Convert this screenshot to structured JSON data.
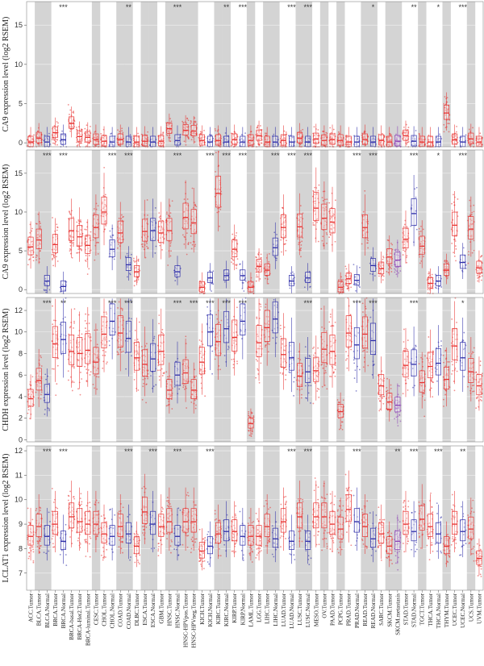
{
  "chart_data": {
    "type": "box",
    "categories": [
      "ACC.Tumor",
      "BLCA.Tumor",
      "BLCA.Normal",
      "BRCA.Tumor",
      "BRCA.Normal",
      "BRCA-basal.Tumor",
      "BRCA-Her2.Tumor",
      "BRCA-luminal.Tumor",
      "CESC.Tumor",
      "CHOL.Tumor",
      "CHOL.Normal",
      "COAD.Tumor",
      "COAD.Normal",
      "DLBC.Tumor",
      "ESCA.Tumor",
      "ESCA.Normal",
      "GBM.Tumor",
      "HNSC.Tumor",
      "HNSC.Normal",
      "HNSC-HPVpos.Tumor",
      "HNSC-HPVneg.Tumor",
      "KICH.Tumor",
      "KICH.Normal",
      "KIRC.Tumor",
      "KIRC.Normal",
      "KIRP.Tumor",
      "KIRP.Normal",
      "LAML.Tumor",
      "LGG.Tumor",
      "LIHC.Tumor",
      "LIHC.Normal",
      "LUAD.Tumor",
      "LUAD.Normal",
      "LUSC.Tumor",
      "LUSC.Normal",
      "MESO.Tumor",
      "OV.Tumor",
      "PAAD.Tumor",
      "PCPG.Tumor",
      "PRAD.Tumor",
      "PRAD.Normal",
      "READ.Tumor",
      "READ.Normal",
      "SARC.Tumor",
      "SKCM.Tumor",
      "SKCM.metastasis",
      "STAD.Tumor",
      "STAD.Normal",
      "TGCT.Tumor",
      "THCA.Tumor",
      "THCA.Normal",
      "THYM.Tumor",
      "UCEC.Tumor",
      "UCEC.Normal",
      "UCS.Tumor",
      "UVM.Tumor"
    ],
    "colors": {
      "tumor": "#e8312f",
      "normal": "#2b2ba8",
      "metastasis": "#8a3fb5",
      "shade": "#d4d4d4",
      "grid": "#ebebeb"
    },
    "panels": [
      {
        "ylabel": "CA9 expression level (log2 RSEM)",
        "ylim": [
          -0.5,
          18
        ],
        "yticks": [
          0,
          5,
          10,
          15
        ],
        "significance": [
          {
            "category": "BRCA.Normal",
            "label": "***"
          },
          {
            "category": "COAD.Normal",
            "label": "**"
          },
          {
            "category": "HNSC.Normal",
            "label": "***"
          },
          {
            "category": "KIRC.Normal",
            "label": "**"
          },
          {
            "category": "KIRP.Normal",
            "label": "***"
          },
          {
            "category": "LUAD.Normal",
            "label": "***"
          },
          {
            "category": "LUSC.Normal",
            "label": "***"
          },
          {
            "category": "READ.Normal",
            "label": "*"
          },
          {
            "category": "STAD.Normal",
            "label": "**"
          },
          {
            "category": "THCA.Normal",
            "label": "*"
          },
          {
            "category": "UCEC.Normal",
            "label": "***"
          }
        ],
        "medians": [
          0.1,
          0.6,
          0.1,
          1.3,
          0.4,
          2.5,
          0.8,
          0.7,
          0.4,
          0.2,
          0.1,
          0.4,
          0.1,
          0.1,
          0.2,
          0.1,
          0.2,
          1.8,
          0.3,
          1.6,
          1.5,
          0.3,
          0.1,
          0.3,
          0.1,
          0.4,
          0.1,
          0.3,
          0.9,
          0.1,
          0.1,
          0.3,
          0.1,
          0.6,
          0.1,
          0.5,
          0.3,
          0.4,
          0.3,
          0.1,
          0.1,
          0.4,
          0.1,
          0.3,
          0.1,
          0.2,
          0.9,
          0.2,
          0.1,
          0.1,
          0.1,
          3.8,
          0.4,
          0.1,
          0.5,
          0.1
        ]
      },
      {
        "ylabel": "CA9 expression level (log2 RSEM)",
        "ylim": [
          -0.5,
          18
        ],
        "yticks": [
          0,
          5,
          10,
          15
        ],
        "significance": [
          {
            "category": "BLCA.Normal",
            "label": "***"
          },
          {
            "category": "BRCA.Normal",
            "label": "***"
          },
          {
            "category": "CHOL.Normal",
            "label": "***"
          },
          {
            "category": "COAD.Normal",
            "label": "***"
          },
          {
            "category": "HNSC.Normal",
            "label": "***"
          },
          {
            "category": "KICH.Normal",
            "label": "***"
          },
          {
            "category": "KIRC.Normal",
            "label": "***"
          },
          {
            "category": "KIRP.Normal",
            "label": "***"
          },
          {
            "category": "LIHC.Normal",
            "label": "***"
          },
          {
            "category": "LUAD.Normal",
            "label": "***"
          },
          {
            "category": "LUSC.Normal",
            "label": "***"
          },
          {
            "category": "PRAD.Normal",
            "label": "***"
          },
          {
            "category": "READ.Normal",
            "label": "***"
          },
          {
            "category": "STAD.Normal",
            "label": "***"
          },
          {
            "category": "THCA.Normal",
            "label": "*"
          },
          {
            "category": "UCEC.Normal",
            "label": "***"
          }
        ],
        "medians": [
          5.5,
          6.4,
          1.1,
          5.8,
          0.4,
          7.6,
          6.8,
          5.7,
          8.0,
          10.0,
          5.2,
          7.3,
          3.2,
          2.3,
          7.5,
          7.6,
          7.3,
          7.6,
          2.3,
          9.3,
          8.6,
          0.3,
          1.5,
          12.4,
          1.8,
          5.2,
          1.8,
          0.3,
          3.0,
          2.5,
          5.4,
          8.0,
          1.1,
          8.1,
          1.5,
          10.5,
          9.2,
          8.7,
          0.3,
          1.4,
          1.2,
          8.0,
          3.1,
          2.7,
          4.2,
          3.8,
          6.5,
          9.8,
          5.6,
          0.8,
          1.1,
          2.5,
          8.3,
          3.5,
          7.8,
          2.8
        ]
      },
      {
        "ylabel": "CHDH expression level (log2 RSEM)",
        "ylim": [
          -0.2,
          13.2
        ],
        "yticks": [
          0,
          2,
          4,
          6,
          8,
          10,
          12
        ],
        "significance": [
          {
            "category": "BLCA.Normal",
            "label": "***"
          },
          {
            "category": "BRCA.Normal",
            "label": "**"
          },
          {
            "category": "CHOL.Normal",
            "label": "***"
          },
          {
            "category": "COAD.Normal",
            "label": "***"
          },
          {
            "category": "HNSC.Normal",
            "label": "***"
          },
          {
            "category": "HNSC-HPVneg.Tumor",
            "label": "***"
          },
          {
            "category": "KICH.Normal",
            "label": "***"
          },
          {
            "category": "KIRC.Normal",
            "label": "***"
          },
          {
            "category": "KIRP.Normal",
            "label": "***"
          },
          {
            "category": "LUSC.Normal",
            "label": "***"
          },
          {
            "category": "PRAD.Normal",
            "label": "***"
          },
          {
            "category": "READ.Normal",
            "label": "***"
          },
          {
            "category": "STAD.Normal",
            "label": "***"
          },
          {
            "category": "UCEC.Normal",
            "label": "*"
          }
        ],
        "medians": [
          3.8,
          5.5,
          4.2,
          8.9,
          9.3,
          8.2,
          8.0,
          8.3,
          7.2,
          9.8,
          11.0,
          9.9,
          9.4,
          7.6,
          7.0,
          7.5,
          8.2,
          4.6,
          6.0,
          6.2,
          4.6,
          7.2,
          10.0,
          9.1,
          10.3,
          9.5,
          11.0,
          1.5,
          9.0,
          10.4,
          11.2,
          7.9,
          7.6,
          5.9,
          6.3,
          6.4,
          8.4,
          8.2,
          2.6,
          9.9,
          8.8,
          9.8,
          9.2,
          5.0,
          3.5,
          3.2,
          6.9,
          7.0,
          5.3,
          6.8,
          7.1,
          5.6,
          8.7,
          7.6,
          6.3,
          5.0
        ]
      },
      {
        "ylabel": "LCLAT1 expression level (log2 RSEM)",
        "ylim": [
          6.3,
          12.2
        ],
        "yticks": [
          7,
          8,
          9,
          10,
          11,
          12
        ],
        "significance": [
          {
            "category": "BLCA.Normal",
            "label": "***"
          },
          {
            "category": "BRCA.Normal",
            "label": "***"
          },
          {
            "category": "COAD.Normal",
            "label": "***"
          },
          {
            "category": "ESCA.Normal",
            "label": "***"
          },
          {
            "category": "HNSC.Normal",
            "label": "***"
          },
          {
            "category": "KICH.Normal",
            "label": "***"
          },
          {
            "category": "LUAD.Normal",
            "label": "***"
          },
          {
            "category": "LUSC.Normal",
            "label": "***"
          },
          {
            "category": "PRAD.Normal",
            "label": "***"
          },
          {
            "category": "SKCM.metastasis",
            "label": "**"
          },
          {
            "category": "STAD.Normal",
            "label": "***"
          },
          {
            "category": "THCA.Normal",
            "label": "***"
          },
          {
            "category": "UCEC.Normal",
            "label": "**"
          }
        ],
        "medians": [
          8.5,
          8.9,
          8.5,
          9.0,
          8.3,
          9.3,
          9.1,
          9.0,
          9.0,
          8.6,
          8.5,
          8.9,
          8.6,
          8.1,
          9.5,
          9.0,
          8.9,
          9.1,
          8.5,
          9.1,
          9.1,
          7.9,
          8.1,
          8.6,
          8.7,
          8.7,
          8.5,
          8.5,
          8.5,
          8.9,
          8.4,
          9.1,
          8.3,
          9.3,
          8.3,
          9.3,
          9.3,
          9.0,
          8.8,
          9.6,
          9.1,
          8.9,
          8.4,
          8.6,
          8.1,
          8.3,
          9.0,
          8.7,
          9.2,
          8.9,
          8.6,
          8.1,
          9.0,
          8.7,
          8.8,
          7.6
        ]
      }
    ]
  }
}
